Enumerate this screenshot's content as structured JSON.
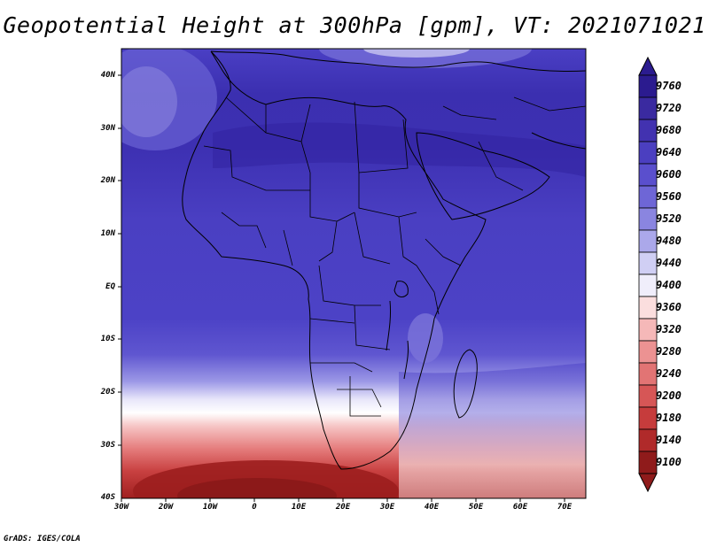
{
  "title": "Geopotential Height at 300hPa [gpm], VT: 2021071021",
  "credit": "GrADS: IGES/COLA",
  "map": {
    "lat_labels": [
      "40N",
      "30N",
      "20N",
      "10N",
      "EQ",
      "10S",
      "20S",
      "30S",
      "40S"
    ],
    "lon_labels": [
      "30W",
      "20W",
      "10W",
      "0",
      "10E",
      "20E",
      "30E",
      "40E",
      "50E",
      "60E",
      "70E"
    ]
  },
  "colorbar": {
    "labels": [
      "9760",
      "9720",
      "9680",
      "9640",
      "9600",
      "9560",
      "9520",
      "9480",
      "9440",
      "9400",
      "9360",
      "9320",
      "9280",
      "9240",
      "9200",
      "9180",
      "9140",
      "9100"
    ],
    "colors": [
      "#2b1b8f",
      "#3a2aa0",
      "#4232b0",
      "#4b3fc0",
      "#5a4fcd",
      "#6e66d6",
      "#8a85e0",
      "#aba8ea",
      "#d0cff4",
      "#f0eefb",
      "#fbdede",
      "#f5b8b8",
      "#ec9292",
      "#e27474",
      "#d65656",
      "#c63c3c",
      "#b02a2a",
      "#8f1b1b"
    ]
  }
}
